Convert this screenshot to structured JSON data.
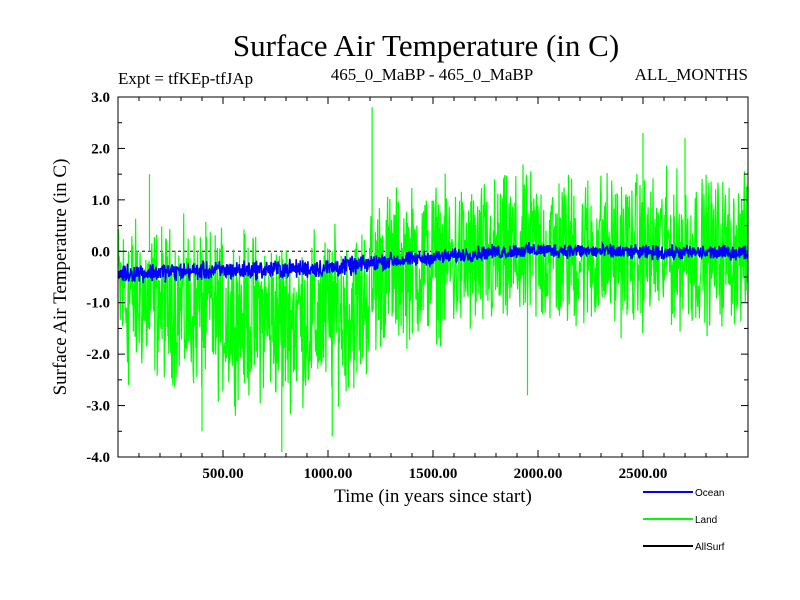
{
  "chart_data": {
    "type": "line",
    "title": "Surface Air Temperature (in C)",
    "subtitle_left": "Expt = tfKEp-tfJAp",
    "subtitle_center": "465_0_MaBP - 465_0_MaBP",
    "subtitle_right": "ALL_MONTHS",
    "xlabel": "Time (in years since start)",
    "ylabel": "Surface Air Temperature (in C)",
    "xlim": [
      0,
      3000
    ],
    "ylim": [
      -4.0,
      3.0
    ],
    "xticks": [
      500,
      1000,
      1500,
      2000,
      2500
    ],
    "xtick_labels": [
      "500.00",
      "1000.00",
      "1500.00",
      "2000.00",
      "2500.00"
    ],
    "yticks": [
      3.0,
      2.0,
      1.0,
      0.0,
      -1.0,
      -2.0,
      -3.0,
      -4.0
    ],
    "ytick_labels": [
      "3.0",
      "2.0",
      "1.0",
      "0.0",
      "-1.0",
      "-2.0",
      "-3.0",
      "-4.0"
    ],
    "zero_line": 0.0,
    "grid": false,
    "legend_position": "bottom-right, below plot",
    "series": [
      {
        "name": "Land",
        "color": "#00ff00",
        "style": "noisy series; envelope given as [year, min, max]",
        "envelope": [
          [
            0,
            -2.6,
            1.0
          ],
          [
            200,
            -2.8,
            0.8
          ],
          [
            400,
            -3.1,
            0.8
          ],
          [
            600,
            -3.2,
            0.7
          ],
          [
            800,
            -3.3,
            0.6
          ],
          [
            1000,
            -3.2,
            0.7
          ],
          [
            1150,
            -3.0,
            0.8
          ],
          [
            1200,
            -2.7,
            1.2
          ],
          [
            1250,
            -2.2,
            1.5
          ],
          [
            1500,
            -2.0,
            1.6
          ],
          [
            1750,
            -2.0,
            1.7
          ],
          [
            2000,
            -1.9,
            1.9
          ],
          [
            2250,
            -1.9,
            1.9
          ],
          [
            2500,
            -1.8,
            1.8
          ],
          [
            2750,
            -1.8,
            1.8
          ],
          [
            3000,
            -1.7,
            1.7
          ]
        ],
        "spikes": [
          [
            50,
            -2.6
          ],
          [
            150,
            1.5
          ],
          [
            400,
            -3.5
          ],
          [
            780,
            -3.9
          ],
          [
            1020,
            -3.6
          ],
          [
            1210,
            2.8
          ],
          [
            1950,
            -2.8
          ],
          [
            2500,
            2.3
          ],
          [
            2700,
            2.2
          ]
        ]
      },
      {
        "name": "Ocean",
        "color": "#0000ff",
        "style": "noisy series; envelope given as [year, min, max]",
        "envelope": [
          [
            0,
            -0.65,
            -0.2
          ],
          [
            500,
            -0.6,
            -0.15
          ],
          [
            1000,
            -0.55,
            -0.1
          ],
          [
            1150,
            -0.5,
            -0.05
          ],
          [
            1250,
            -0.4,
            0.0
          ],
          [
            1500,
            -0.3,
            0.05
          ],
          [
            1750,
            -0.2,
            0.15
          ],
          [
            2000,
            -0.15,
            0.2
          ],
          [
            2500,
            -0.2,
            0.15
          ],
          [
            3000,
            -0.2,
            0.15
          ]
        ]
      },
      {
        "name": "AllSurf",
        "color": "#000000",
        "style": "no visible data"
      }
    ],
    "legend": [
      {
        "label": "Ocean",
        "color": "#0000ff"
      },
      {
        "label": "Land",
        "color": "#00ff00"
      },
      {
        "label": "AllSurf",
        "color": "#000000"
      }
    ]
  }
}
